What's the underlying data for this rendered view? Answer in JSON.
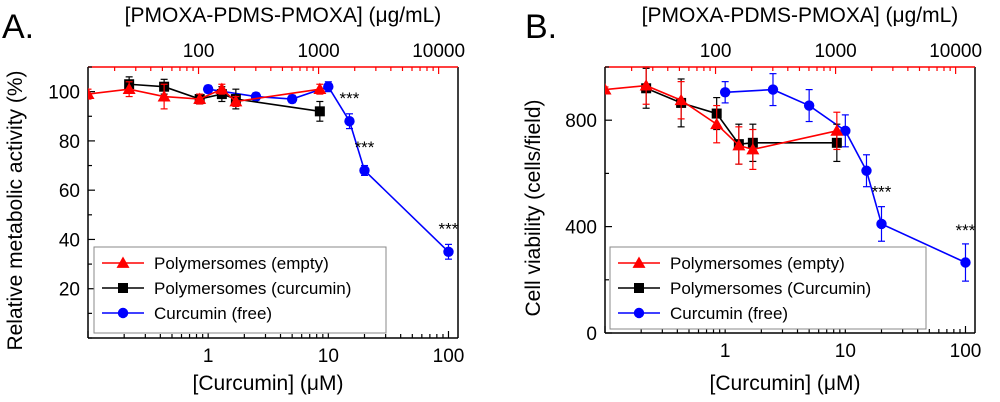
{
  "chart_data": [
    {
      "type": "line",
      "panel_label": "A.",
      "xlabel": "[Curcumin] (μM)",
      "ylabel": "Relative metabolic activity (%)",
      "top_xlabel": "[PMOXA-PDMS-PMOXA] (μg/mL)",
      "x_scale": "log",
      "xlim": [
        0.1,
        120
      ],
      "ylim": [
        0,
        110
      ],
      "x_ticks": [
        1,
        10,
        100
      ],
      "x_tick_labels": [
        "1",
        "10",
        "100"
      ],
      "y_ticks": [
        20,
        40,
        60,
        80,
        100
      ],
      "y_tick_labels": [
        "20",
        "40",
        "60",
        "80",
        "100"
      ],
      "top_x_ticks": [
        100,
        1000,
        10000
      ],
      "top_x_tick_labels": [
        "100",
        "1000",
        "10000"
      ],
      "top_xlim": [
        12,
        14500
      ],
      "legend_position": "bottom-left",
      "series": [
        {
          "name": "Polymersomes (empty)",
          "color": "#ff0000",
          "marker": "triangle",
          "x": [
            0.1,
            0.22,
            0.43,
            0.85,
            1.3,
            1.7,
            8.5
          ],
          "y": [
            99,
            101,
            98,
            97,
            101,
            96,
            101
          ],
          "err": [
            2,
            3,
            5,
            2,
            2,
            2,
            2
          ]
        },
        {
          "name": "Polymersomes (curcumin)",
          "color": "#000000",
          "marker": "square",
          "x": [
            0.22,
            0.43,
            0.85,
            1.3,
            1.7,
            8.5
          ],
          "y": [
            103,
            102,
            97,
            99,
            97,
            92
          ],
          "err": [
            3,
            3,
            2,
            3,
            4,
            4
          ]
        },
        {
          "name": "Curcumin (free)",
          "color": "#0000ff",
          "marker": "circle",
          "x": [
            1,
            2.5,
            5,
            10,
            15,
            20,
            100
          ],
          "y": [
            101,
            98,
            97,
            102,
            88,
            68,
            35
          ],
          "err": [
            1.5,
            1.5,
            1.5,
            2,
            3,
            2,
            3
          ]
        }
      ],
      "annotations": [
        {
          "text": "***",
          "x": 15,
          "y": 95
        },
        {
          "text": "***",
          "x": 20,
          "y": 75
        },
        {
          "text": "***",
          "x": 100,
          "y": 42
        }
      ]
    },
    {
      "type": "line",
      "panel_label": "B.",
      "xlabel": "[Curcumin] (μM)",
      "ylabel": "Cell viability (cells/field)",
      "top_xlabel": "[PMOXA-PDMS-PMOXA] (μg/mL)",
      "x_scale": "log",
      "xlim": [
        0.1,
        120
      ],
      "ylim": [
        0,
        1000
      ],
      "x_ticks": [
        1,
        10,
        100
      ],
      "x_tick_labels": [
        "1",
        "10",
        "100"
      ],
      "y_ticks": [
        0,
        400,
        800
      ],
      "y_tick_labels": [
        "0",
        "400",
        "800"
      ],
      "top_x_ticks": [
        100,
        1000,
        10000
      ],
      "top_x_tick_labels": [
        "100",
        "1000",
        "10000"
      ],
      "top_xlim": [
        12,
        14500
      ],
      "legend_position": "bottom-left",
      "series": [
        {
          "name": "Polymersomes (empty)",
          "color": "#ff0000",
          "marker": "triangle",
          "x": [
            0.1,
            0.22,
            0.43,
            0.85,
            1.3,
            1.7,
            8.5
          ],
          "y": [
            915,
            930,
            875,
            785,
            705,
            690,
            760
          ],
          "err": [
            10,
            70,
            70,
            70,
            70,
            75,
            70
          ]
        },
        {
          "name": "Polymersomes (Curcumin)",
          "color": "#000000",
          "marker": "square",
          "x": [
            0.22,
            0.43,
            0.85,
            1.3,
            1.7,
            8.5
          ],
          "y": [
            920,
            865,
            825,
            710,
            715,
            715
          ],
          "err": [
            75,
            90,
            60,
            75,
            70,
            70
          ]
        },
        {
          "name": "Curcumin (free)",
          "color": "#0000ff",
          "marker": "circle",
          "x": [
            1,
            2.5,
            5,
            10,
            15,
            20,
            100
          ],
          "y": [
            905,
            915,
            855,
            760,
            610,
            410,
            265
          ],
          "err": [
            40,
            60,
            60,
            60,
            60,
            65,
            70
          ]
        }
      ],
      "annotations": [
        {
          "text": "***",
          "x": 20,
          "y": 510
        },
        {
          "text": "***",
          "x": 100,
          "y": 365
        }
      ]
    }
  ]
}
